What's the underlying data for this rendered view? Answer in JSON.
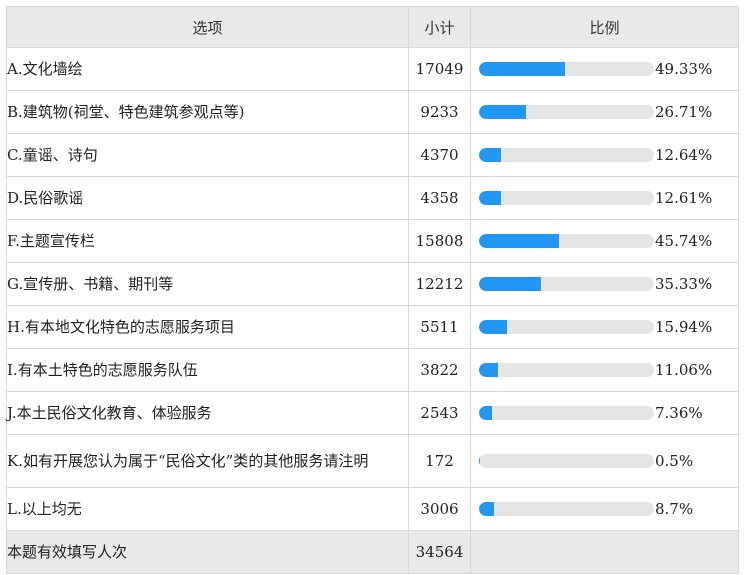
{
  "header": {
    "option": "选项",
    "count": "小计",
    "ratio": "比例"
  },
  "rows": [
    {
      "label": "A.文化墙绘",
      "count": "17049",
      "pct": "49.33%",
      "fraction": 0.4933
    },
    {
      "label": "B.建筑物(祠堂、特色建筑参观点等)",
      "count": "9233",
      "pct": "26.71%",
      "fraction": 0.2671
    },
    {
      "label": "C.童谣、诗句",
      "count": "4370",
      "pct": "12.64%",
      "fraction": 0.1264
    },
    {
      "label": "D.民俗歌谣",
      "count": "4358",
      "pct": "12.61%",
      "fraction": 0.1261
    },
    {
      "label": "F.主题宣传栏",
      "count": "15808",
      "pct": "45.74%",
      "fraction": 0.4574
    },
    {
      "label": "G.宣传册、书籍、期刊等",
      "count": "12212",
      "pct": "35.33%",
      "fraction": 0.3533
    },
    {
      "label": "H.有本地文化特色的志愿服务项目",
      "count": "5511",
      "pct": "15.94%",
      "fraction": 0.1594
    },
    {
      "label": "I.有本土特色的志愿服务队伍",
      "count": "3822",
      "pct": "11.06%",
      "fraction": 0.1106
    },
    {
      "label": "J.本土民俗文化教育、体验服务",
      "count": "2543",
      "pct": "7.36%",
      "fraction": 0.0736
    },
    {
      "label": "K.如有开展您认为属于“民俗文化”类的其他服务请注明",
      "count": "172",
      "pct": "0.5%",
      "fraction": 0.005
    },
    {
      "label": "L.以上均无",
      "count": "3006",
      "pct": "8.7%",
      "fraction": 0.087
    }
  ],
  "footer": {
    "label": "本题有效填写人次",
    "count": "34564"
  },
  "colors": {
    "bar": "#2196f3",
    "track": "#e5e5e5",
    "header_bg": "#e9e9e9"
  }
}
